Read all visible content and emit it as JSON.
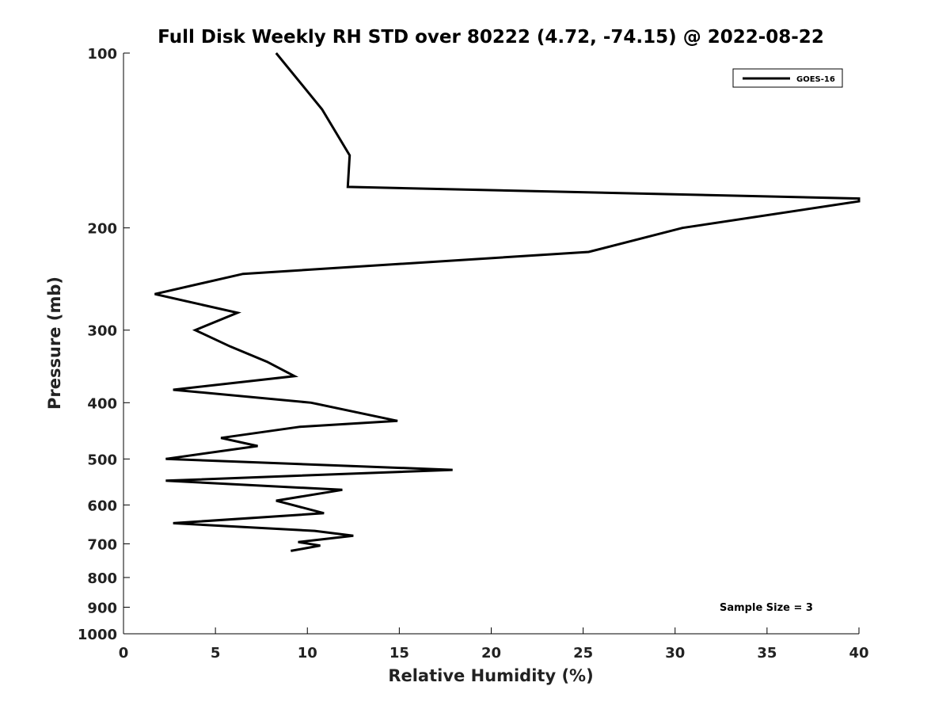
{
  "chart_data": {
    "type": "line",
    "title": "Full Disk Weekly RH STD over 80222 (4.72, -74.15) @ 2022-08-22",
    "xlabel": "Relative Humidity (%)",
    "ylabel": "Pressure (mb)",
    "xlim": [
      0,
      40
    ],
    "ylim": [
      100,
      1000
    ],
    "yscale": "log",
    "y_reversed": true,
    "grid": false,
    "legend_position": "top-right",
    "x_ticks": [
      0,
      5,
      10,
      15,
      20,
      25,
      30,
      35,
      40
    ],
    "y_ticks": [
      100,
      200,
      300,
      400,
      500,
      600,
      700,
      800,
      900,
      1000
    ],
    "annotation": "Sample Size = 3",
    "series": [
      {
        "name": "GOES-16",
        "color": "#000000",
        "points": [
          [
            8.3,
            100
          ],
          [
            10.8,
            125
          ],
          [
            12.3,
            150
          ],
          [
            12.2,
            170
          ],
          [
            40.0,
            178
          ],
          [
            40.0,
            180
          ],
          [
            30.4,
            200
          ],
          [
            25.3,
            220
          ],
          [
            6.5,
            240
          ],
          [
            1.7,
            260
          ],
          [
            6.2,
            280
          ],
          [
            3.9,
            300
          ],
          [
            5.8,
            320
          ],
          [
            7.8,
            340
          ],
          [
            9.3,
            360
          ],
          [
            2.7,
            380
          ],
          [
            10.2,
            400
          ],
          [
            14.9,
            430
          ],
          [
            9.6,
            440
          ],
          [
            5.3,
            460
          ],
          [
            7.3,
            475
          ],
          [
            2.3,
            500
          ],
          [
            17.9,
            522
          ],
          [
            2.3,
            545
          ],
          [
            11.9,
            565
          ],
          [
            8.3,
            590
          ],
          [
            9.2,
            600
          ],
          [
            10.9,
            620
          ],
          [
            2.7,
            645
          ],
          [
            10.4,
            665
          ],
          [
            12.5,
            678
          ],
          [
            9.5,
            695
          ],
          [
            10.7,
            705
          ],
          [
            9.1,
            720
          ]
        ]
      }
    ]
  }
}
